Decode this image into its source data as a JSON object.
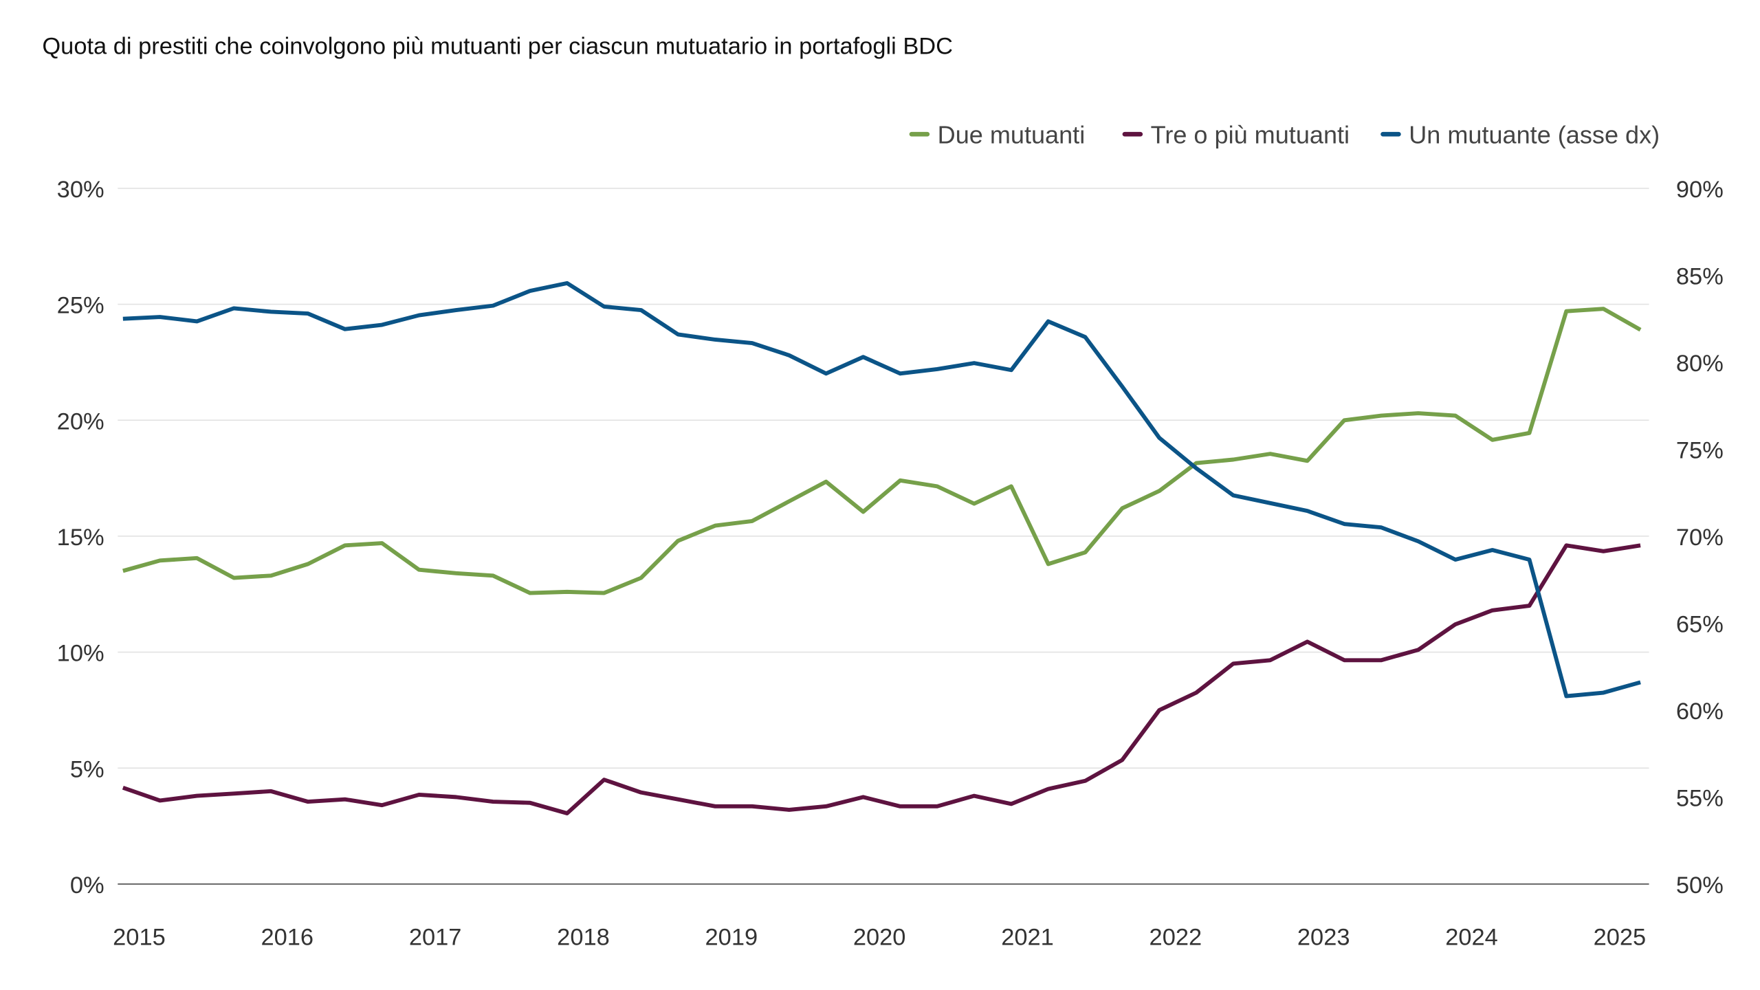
{
  "chart_data": {
    "type": "line",
    "title": "Quota di prestiti che coinvolgono più mutuanti per ciascun mutuatario in portafogli BDC",
    "xlabel": "",
    "ylabel": "",
    "x_tick_labels": [
      "2015",
      "2016",
      "2017",
      "2018",
      "2019",
      "2020",
      "2021",
      "2022",
      "2023",
      "2024",
      "2025"
    ],
    "y_left": {
      "ticks": [
        "0%",
        "5%",
        "10%",
        "15%",
        "20%",
        "25%",
        "30%"
      ],
      "range": [
        0,
        30
      ]
    },
    "y_right": {
      "ticks": [
        "50%",
        "55%",
        "60%",
        "65%",
        "70%",
        "75%",
        "80%",
        "85%",
        "90%"
      ],
      "range": [
        50,
        90
      ]
    },
    "grid": "horizontal",
    "legend_position": "top-right",
    "x": [
      "2014Q4",
      "2015Q1",
      "2015Q2",
      "2015Q3",
      "2015Q4",
      "2016Q1",
      "2016Q2",
      "2016Q3",
      "2016Q4",
      "2017Q1",
      "2017Q2",
      "2017Q3",
      "2017Q4",
      "2018Q1",
      "2018Q2",
      "2018Q3",
      "2018Q4",
      "2019Q1",
      "2019Q2",
      "2019Q3",
      "2019Q4",
      "2020Q1",
      "2020Q2",
      "2020Q3",
      "2020Q4",
      "2021Q1",
      "2021Q2",
      "2021Q3",
      "2021Q4",
      "2022Q1",
      "2022Q2",
      "2022Q3",
      "2022Q4",
      "2023Q1",
      "2023Q2",
      "2023Q3",
      "2023Q4",
      "2024Q1",
      "2024Q2",
      "2024Q3",
      "2024Q4",
      "2025Q1"
    ],
    "series": [
      {
        "name": "Due mutuanti",
        "axis": "left",
        "color": "#76a04a",
        "values": [
          13.5,
          13.95,
          14.05,
          13.2,
          13.3,
          13.8,
          14.6,
          14.7,
          13.55,
          13.4,
          13.3,
          12.55,
          12.6,
          12.55,
          13.2,
          14.8,
          15.45,
          15.65,
          16.5,
          17.35,
          16.05,
          17.4,
          17.15,
          16.4,
          17.15,
          13.8,
          14.3,
          16.2,
          16.95,
          18.15,
          18.3,
          18.55,
          18.25,
          20.0,
          20.2,
          20.3,
          20.2,
          19.15,
          19.45,
          24.7,
          24.8,
          23.9
        ]
      },
      {
        "name": "Tre o più mutuanti",
        "axis": "left",
        "color": "#5e1340",
        "values": [
          4.15,
          3.6,
          3.8,
          3.9,
          4.0,
          3.55,
          3.65,
          3.4,
          3.85,
          3.75,
          3.55,
          3.5,
          3.05,
          4.5,
          3.95,
          3.65,
          3.35,
          3.35,
          3.2,
          3.35,
          3.75,
          3.35,
          3.35,
          3.8,
          3.45,
          4.1,
          4.45,
          5.35,
          7.5,
          8.25,
          9.5,
          9.65,
          10.45,
          9.65,
          9.65,
          10.1,
          11.2,
          11.8,
          12.0,
          14.6,
          14.35,
          14.6
        ]
      },
      {
        "name": "Un mutuante (asse dx)",
        "axis": "right",
        "color": "#0b5487",
        "values": [
          82.5,
          82.6,
          82.35,
          83.1,
          82.9,
          82.8,
          81.9,
          82.15,
          82.7,
          83.0,
          83.25,
          84.1,
          84.55,
          83.2,
          83.0,
          81.6,
          81.3,
          81.1,
          80.4,
          79.35,
          80.3,
          79.35,
          79.6,
          79.95,
          79.55,
          82.35,
          81.45,
          78.6,
          75.65,
          73.9,
          72.35,
          71.9,
          71.45,
          70.7,
          70.5,
          69.7,
          68.65,
          69.2,
          68.65,
          60.8,
          61.0,
          61.6
        ]
      }
    ]
  }
}
